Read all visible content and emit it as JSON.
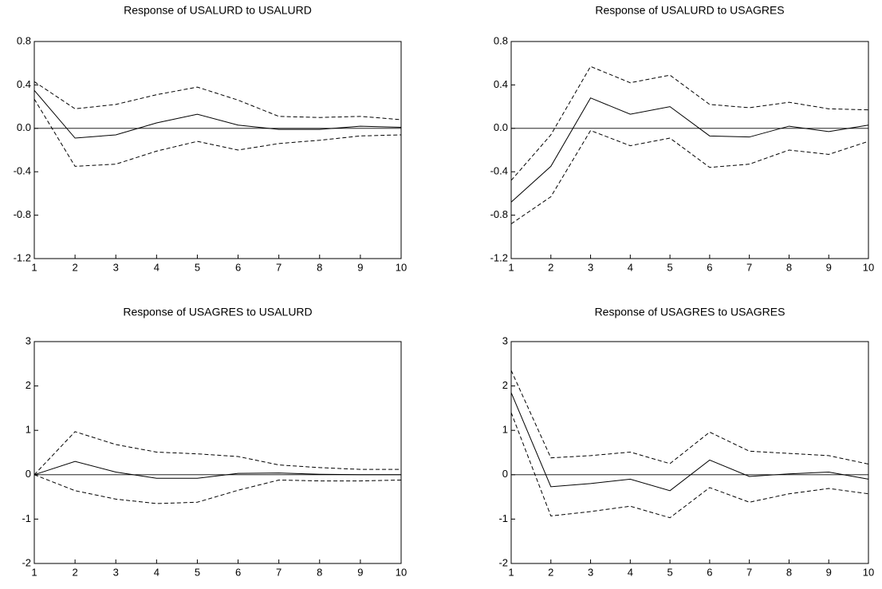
{
  "chart_data": [
    {
      "type": "line",
      "title": "Response of USALURD to USALURD",
      "x": [
        1,
        2,
        3,
        4,
        5,
        6,
        7,
        8,
        9,
        10
      ],
      "xlim": [
        1,
        10
      ],
      "xticks": [
        1,
        2,
        3,
        4,
        5,
        6,
        7,
        8,
        9,
        10
      ],
      "ylim": [
        -1.2,
        0.8
      ],
      "yticks": [
        -1.2,
        -0.8,
        -0.4,
        {
          "value": 0,
          "label": "0.0"
        },
        0.4,
        0.8
      ],
      "zero_line": true,
      "series": [
        {
          "color": "#000000",
          "line_style": "solid",
          "values": [
            0.35,
            -0.09,
            -0.06,
            0.05,
            0.13,
            0.03,
            -0.01,
            -0.01,
            0.02,
            0.01
          ]
        },
        {
          "color": "#000000",
          "line_style": "dashed",
          "values": [
            0.43,
            0.18,
            0.22,
            0.31,
            0.38,
            0.26,
            0.11,
            0.1,
            0.11,
            0.08
          ]
        },
        {
          "color": "#000000",
          "line_style": "dashed",
          "values": [
            0.27,
            -0.35,
            -0.33,
            -0.21,
            -0.12,
            -0.2,
            -0.14,
            -0.11,
            -0.07,
            -0.06
          ]
        }
      ]
    },
    {
      "type": "line",
      "title": "Response of USALURD to USAGRES",
      "x": [
        1,
        2,
        3,
        4,
        5,
        6,
        7,
        8,
        9,
        10
      ],
      "xlim": [
        1,
        10
      ],
      "xticks": [
        1,
        2,
        3,
        4,
        5,
        6,
        7,
        8,
        9,
        10
      ],
      "ylim": [
        -1.2,
        0.8
      ],
      "yticks": [
        -1.2,
        -0.8,
        -0.4,
        {
          "value": 0,
          "label": "0.0"
        },
        0.4,
        0.8
      ],
      "zero_line": true,
      "series": [
        {
          "color": "#000000",
          "line_style": "solid",
          "values": [
            -0.68,
            -0.35,
            0.28,
            0.13,
            0.2,
            -0.07,
            -0.08,
            0.02,
            -0.03,
            0.03
          ]
        },
        {
          "color": "#000000",
          "line_style": "dashed",
          "values": [
            -0.48,
            -0.06,
            0.57,
            0.42,
            0.49,
            0.22,
            0.19,
            0.24,
            0.18,
            0.17
          ]
        },
        {
          "color": "#000000",
          "line_style": "dashed",
          "values": [
            -0.88,
            -0.63,
            -0.02,
            -0.16,
            -0.09,
            -0.36,
            -0.33,
            -0.2,
            -0.24,
            -0.12
          ]
        }
      ]
    },
    {
      "type": "line",
      "title": "Response of USAGRES to USALURD",
      "x": [
        1,
        2,
        3,
        4,
        5,
        6,
        7,
        8,
        9,
        10
      ],
      "xlim": [
        1,
        10
      ],
      "xticks": [
        1,
        2,
        3,
        4,
        5,
        6,
        7,
        8,
        9,
        10
      ],
      "ylim": [
        -2,
        3
      ],
      "yticks": [
        -2,
        -1,
        0,
        1,
        2,
        3
      ],
      "zero_line": true,
      "series": [
        {
          "color": "#000000",
          "line_style": "solid",
          "values": [
            0,
            0.3,
            0.06,
            -0.08,
            -0.08,
            0.03,
            0.04,
            0.01,
            0,
            0
          ]
        },
        {
          "color": "#000000",
          "line_style": "dashed",
          "values": [
            0,
            0.97,
            0.68,
            0.51,
            0.47,
            0.41,
            0.22,
            0.16,
            0.12,
            0.12
          ]
        },
        {
          "color": "#000000",
          "line_style": "dashed",
          "values": [
            0,
            -0.36,
            -0.55,
            -0.65,
            -0.62,
            -0.35,
            -0.12,
            -0.14,
            -0.14,
            -0.12
          ]
        }
      ]
    },
    {
      "type": "line",
      "title": "Response of USAGRES to USAGRES",
      "x": [
        1,
        2,
        3,
        4,
        5,
        6,
        7,
        8,
        9,
        10
      ],
      "xlim": [
        1,
        10
      ],
      "xticks": [
        1,
        2,
        3,
        4,
        5,
        6,
        7,
        8,
        9,
        10
      ],
      "ylim": [
        -2,
        3
      ],
      "yticks": [
        -2,
        -1,
        0,
        1,
        2,
        3
      ],
      "zero_line": true,
      "series": [
        {
          "color": "#000000",
          "line_style": "solid",
          "values": [
            1.85,
            -0.27,
            -0.2,
            -0.1,
            -0.36,
            0.33,
            -0.04,
            0.02,
            0.06,
            -0.1
          ]
        },
        {
          "color": "#000000",
          "line_style": "dashed",
          "values": [
            2.35,
            0.38,
            0.43,
            0.51,
            0.25,
            0.96,
            0.53,
            0.48,
            0.43,
            0.24
          ]
        },
        {
          "color": "#000000",
          "line_style": "dashed",
          "values": [
            1.4,
            -0.93,
            -0.83,
            -0.71,
            -0.97,
            -0.29,
            -0.62,
            -0.43,
            -0.31,
            -0.43
          ]
        }
      ]
    }
  ]
}
